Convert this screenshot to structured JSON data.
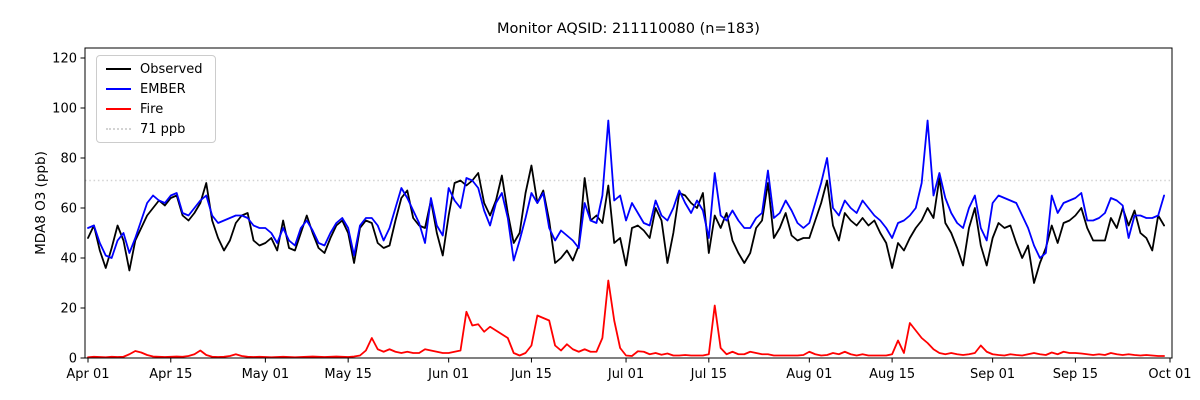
{
  "title": "Monitor AQSID: 211110080 (n=183)",
  "ylabel": "MDA8 O3 (ppb)",
  "n": 183,
  "chart_data": {
    "type": "line",
    "title": "Monitor AQSID: 211110080 (n=183)",
    "xlabel": "",
    "ylabel": "MDA8 O3 (ppb)",
    "ylim": [
      0,
      124
    ],
    "grid": false,
    "legend_position": "upper left",
    "x_start_date": "Apr 01",
    "x_end_date": "Oct 01",
    "n_days": 183,
    "yticks": [
      0,
      20,
      40,
      60,
      80,
      100,
      120
    ],
    "xticks": [
      {
        "label": "Apr 01",
        "day": 0
      },
      {
        "label": "Apr 15",
        "day": 14
      },
      {
        "label": "May 01",
        "day": 30
      },
      {
        "label": "May 15",
        "day": 44
      },
      {
        "label": "Jun 01",
        "day": 61
      },
      {
        "label": "Jun 15",
        "day": 75
      },
      {
        "label": "Jul 01",
        "day": 91
      },
      {
        "label": "Jul 15",
        "day": 105
      },
      {
        "label": "Aug 01",
        "day": 122
      },
      {
        "label": "Aug 15",
        "day": 136
      },
      {
        "label": "Sep 01",
        "day": 153
      },
      {
        "label": "Sep 15",
        "day": 167
      },
      {
        "label": "Oct 01",
        "day": 183
      }
    ],
    "threshold": {
      "value": 71,
      "label": "71 ppb",
      "color": "#d3d3d3"
    },
    "series": [
      {
        "name": "Observed",
        "color": "#000000",
        "style": "solid",
        "values": [
          48,
          53,
          43,
          36,
          44,
          53,
          47,
          35,
          47,
          52,
          57,
          60,
          63,
          61,
          64,
          65,
          57,
          55,
          58,
          62,
          70,
          55,
          48,
          43,
          47,
          54,
          57,
          58,
          47,
          45,
          46,
          48,
          43,
          55,
          44,
          43,
          50,
          57,
          50,
          44,
          42,
          48,
          53,
          55,
          50,
          38,
          52,
          55,
          54,
          46,
          44,
          45,
          55,
          64,
          67,
          56,
          53,
          52,
          63,
          50,
          41,
          57,
          70,
          71,
          69,
          71,
          74,
          62,
          57,
          63,
          73,
          58,
          46,
          50,
          66,
          77,
          62,
          67,
          55,
          38,
          40,
          43,
          39,
          45,
          72,
          55,
          57,
          54,
          69,
          46,
          48,
          37,
          52,
          53,
          51,
          48,
          60,
          55,
          38,
          50,
          66,
          65,
          62,
          60,
          66,
          42,
          57,
          52,
          58,
          47,
          42,
          38,
          42,
          52,
          55,
          70,
          48,
          52,
          58,
          49,
          47,
          48,
          48,
          55,
          62,
          71,
          53,
          47,
          58,
          55,
          53,
          56,
          53,
          55,
          50,
          46,
          36,
          46,
          43,
          48,
          52,
          55,
          60,
          56,
          72,
          54,
          50,
          44,
          37,
          52,
          60,
          45,
          37,
          48,
          54,
          52,
          53,
          46,
          40,
          45,
          30,
          38,
          44,
          53,
          46,
          54,
          55,
          57,
          60,
          52,
          47,
          47,
          47,
          56,
          52,
          60,
          53,
          59,
          50,
          48,
          43,
          57,
          53
        ]
      },
      {
        "name": "EMBER",
        "color": "#0000ff",
        "style": "solid",
        "values": [
          52,
          53,
          46,
          41,
          40,
          47,
          50,
          42,
          48,
          55,
          62,
          65,
          63,
          62,
          65,
          66,
          58,
          57,
          60,
          63,
          65,
          57,
          54,
          55,
          56,
          57,
          57,
          56,
          53,
          52,
          52,
          50,
          46,
          52,
          47,
          45,
          52,
          55,
          51,
          46,
          45,
          50,
          54,
          56,
          52,
          41,
          53,
          56,
          56,
          53,
          47,
          52,
          60,
          68,
          64,
          59,
          54,
          46,
          64,
          53,
          49,
          68,
          63,
          60,
          72,
          71,
          68,
          59,
          53,
          62,
          66,
          56,
          39,
          47,
          56,
          66,
          62,
          66,
          52,
          47,
          51,
          49,
          47,
          44,
          62,
          55,
          54,
          65,
          95,
          63,
          65,
          55,
          62,
          58,
          54,
          53,
          63,
          57,
          55,
          60,
          67,
          62,
          58,
          63,
          59,
          48,
          74,
          57,
          55,
          59,
          55,
          52,
          52,
          56,
          58,
          75,
          56,
          58,
          63,
          59,
          54,
          52,
          54,
          62,
          70,
          80,
          60,
          57,
          63,
          60,
          58,
          63,
          60,
          57,
          55,
          52,
          48,
          54,
          55,
          57,
          60,
          70,
          95,
          65,
          74,
          64,
          58,
          54,
          52,
          60,
          65,
          52,
          47,
          62,
          65,
          64,
          63,
          62,
          57,
          52,
          45,
          40,
          42,
          65,
          58,
          62,
          63,
          64,
          66,
          55,
          55,
          56,
          58,
          64,
          63,
          61,
          48,
          57,
          57,
          56,
          56,
          57,
          65
        ]
      },
      {
        "name": "Fire",
        "color": "#ff0000",
        "style": "solid",
        "values": [
          0.3,
          0.5,
          0.4,
          0.3,
          0.5,
          0.4,
          0.5,
          1.5,
          2.8,
          2.2,
          1.2,
          0.6,
          0.5,
          0.4,
          0.5,
          0.6,
          0.5,
          0.8,
          1.5,
          3,
          1.2,
          0.5,
          0.4,
          0.5,
          0.8,
          1.5,
          0.8,
          0.5,
          0.4,
          0.5,
          0.4,
          0.3,
          0.4,
          0.5,
          0.4,
          0.3,
          0.4,
          0.5,
          0.6,
          0.5,
          0.4,
          0.5,
          0.6,
          0.5,
          0.4,
          0.6,
          1,
          3,
          8,
          3.5,
          2.5,
          3.5,
          2.5,
          2,
          2.5,
          2,
          2,
          3.5,
          3,
          2.5,
          2,
          2,
          2.5,
          3,
          18.5,
          13,
          13.5,
          10.5,
          12.5,
          11,
          9.5,
          8,
          2,
          1,
          2,
          5,
          17,
          16,
          15,
          5,
          3,
          5.5,
          3.5,
          2.5,
          3.5,
          2.5,
          2.5,
          8,
          31,
          15,
          4,
          1,
          0.8,
          2.7,
          2.5,
          1.5,
          2,
          1.3,
          1.8,
          1,
          1,
          1.2,
          1,
          1,
          1,
          1.5,
          21,
          4,
          1.5,
          2.5,
          1.5,
          1.5,
          2.5,
          2,
          1.5,
          1.5,
          1,
          1,
          1,
          1,
          1,
          1.2,
          2.5,
          1.5,
          1,
          1.2,
          2,
          1.5,
          2.5,
          1.5,
          1,
          1.5,
          1,
          1,
          1,
          1,
          1.5,
          7,
          2,
          14,
          11,
          8,
          6,
          3.5,
          2,
          1.5,
          2,
          1.5,
          1.2,
          1.5,
          2,
          5,
          2.5,
          1.5,
          1.2,
          1,
          1.5,
          1.2,
          1,
          1.5,
          2,
          1.5,
          1.2,
          2.2,
          1.5,
          2.5,
          2,
          2,
          1.8,
          1.5,
          1.2,
          1.5,
          1.2,
          2,
          1.5,
          1.2,
          1.5,
          1.2,
          1,
          1.2,
          1,
          0.8,
          0.8
        ]
      },
      {
        "name": "71 ppb",
        "color": "#d3d3d3",
        "style": "dotted",
        "type": "threshold",
        "value": 71
      }
    ]
  }
}
